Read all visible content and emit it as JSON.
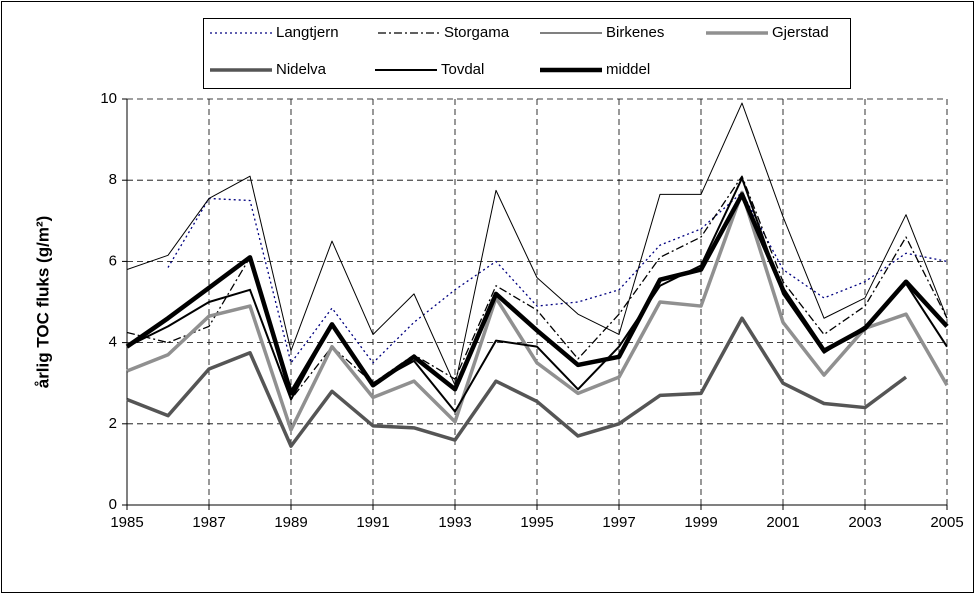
{
  "chart_data": {
    "type": "line",
    "ylabel": "årlig TOC fluks (g/m²)",
    "x": [
      1985,
      1986,
      1987,
      1988,
      1989,
      1990,
      1991,
      1992,
      1993,
      1994,
      1995,
      1996,
      1997,
      1998,
      1999,
      2000,
      2001,
      2002,
      2003,
      2004,
      2005
    ],
    "xlim": [
      1985,
      2005
    ],
    "xticks": [
      1985,
      1987,
      1989,
      1991,
      1993,
      1995,
      1997,
      1999,
      2001,
      2003,
      2005
    ],
    "ylim": [
      0,
      10
    ],
    "yticks": [
      0,
      2,
      4,
      6,
      8,
      10
    ],
    "grid": true,
    "legend": "top",
    "series": [
      {
        "name": "Langtjern",
        "color": "#000080",
        "values": [
          null,
          5.85,
          7.55,
          7.5,
          3.5,
          4.85,
          3.5,
          4.5,
          5.3,
          6.0,
          4.9,
          5.0,
          5.3,
          6.4,
          6.8,
          7.7,
          5.8,
          5.1,
          5.5,
          6.2,
          6.0
        ]
      },
      {
        "name": "Storgama",
        "color": "#000000",
        "values": [
          4.25,
          4.0,
          4.4,
          6.1,
          2.6,
          3.9,
          3.0,
          3.7,
          3.1,
          5.4,
          4.8,
          3.6,
          4.7,
          6.1,
          6.6,
          8.1,
          5.5,
          4.2,
          4.9,
          6.6,
          4.6
        ]
      },
      {
        "name": "Birkenes",
        "color": "#000000",
        "values": [
          5.8,
          6.15,
          7.55,
          8.1,
          3.8,
          6.5,
          4.2,
          5.2,
          2.95,
          7.75,
          5.6,
          4.7,
          4.2,
          7.65,
          7.65,
          9.9,
          7.1,
          4.6,
          5.1,
          7.15,
          4.6
        ]
      },
      {
        "name": "Gjerstad",
        "color": "#909090",
        "values": [
          3.3,
          3.7,
          4.65,
          4.9,
          1.85,
          3.9,
          2.65,
          3.05,
          2.05,
          5.1,
          3.5,
          2.75,
          3.15,
          5.0,
          4.9,
          7.7,
          4.5,
          3.2,
          4.35,
          4.7,
          2.95
        ]
      },
      {
        "name": "Nidelva",
        "color": "#555555",
        "values": [
          2.6,
          2.2,
          3.35,
          3.75,
          1.45,
          2.8,
          1.95,
          1.9,
          1.6,
          3.05,
          2.55,
          1.7,
          2.0,
          2.7,
          2.75,
          4.6,
          3.0,
          2.5,
          2.4,
          3.15,
          null
        ]
      },
      {
        "name": "Tovdal",
        "color": "#000000",
        "values": [
          3.9,
          4.4,
          5.0,
          5.3,
          2.6,
          4.45,
          3.0,
          3.55,
          2.3,
          4.05,
          3.9,
          2.85,
          3.9,
          5.4,
          5.9,
          8.05,
          5.2,
          3.75,
          4.4,
          5.45,
          3.9
        ]
      },
      {
        "name": "middel",
        "color": "#000000",
        "values": [
          3.9,
          4.6,
          5.35,
          6.1,
          2.75,
          4.45,
          2.95,
          3.65,
          2.85,
          5.2,
          4.3,
          3.45,
          3.65,
          5.55,
          5.8,
          7.65,
          5.3,
          3.8,
          4.35,
          5.5,
          4.4
        ]
      }
    ]
  }
}
